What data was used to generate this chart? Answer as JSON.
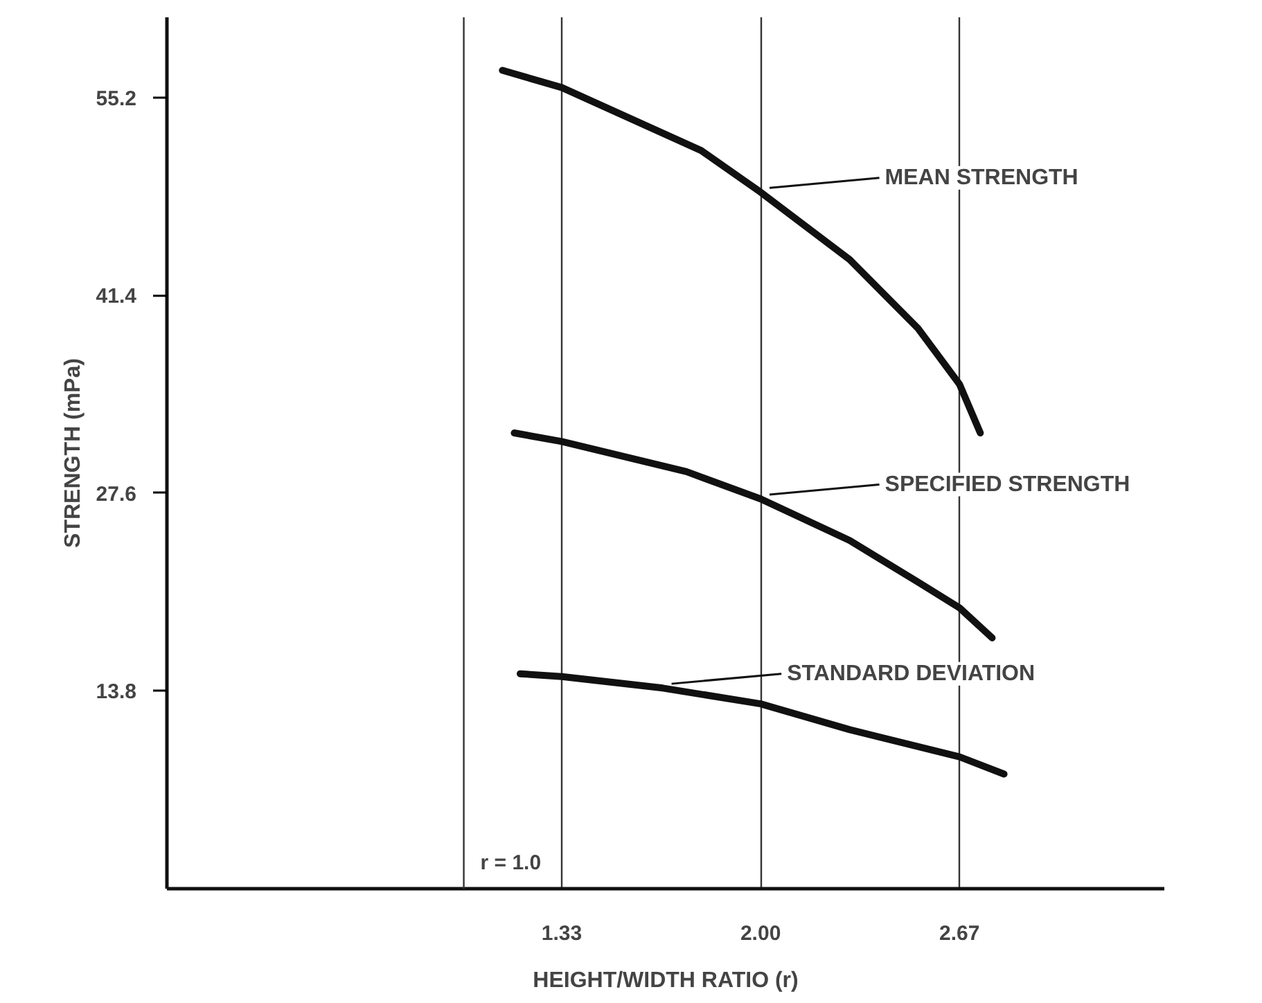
{
  "chart_data": {
    "type": "line",
    "xlabel": "HEIGHT/WIDTH RATIO (r)",
    "ylabel": "STRENGTH (mPa)",
    "xlim": [
      0,
      3.36
    ],
    "xticks": [
      {
        "value": 1.33,
        "label": "1.33"
      },
      {
        "value": 2.0,
        "label": "2.00"
      },
      {
        "value": 2.67,
        "label": "2.67"
      }
    ],
    "ylim": [
      0,
      60.8
    ],
    "legend": "right",
    "yticks": [
      13.8,
      27.6,
      41.4,
      55.2
    ],
    "grid": "x",
    "ref_lines": [
      {
        "axis": "x",
        "value": 1.0,
        "label": "r = 1.0"
      }
    ],
    "series": [
      {
        "name": "MEAN STRENGTH",
        "color": "#111111",
        "x": [
          1.13,
          1.33,
          1.8,
          2.0,
          2.3,
          2.53,
          2.67,
          2.74
        ],
        "values": [
          57.1,
          55.9,
          51.5,
          48.6,
          43.9,
          39.1,
          35.2,
          31.8
        ]
      },
      {
        "name": "SPECIFIED STRENGTH",
        "color": "#111111",
        "x": [
          1.17,
          1.33,
          1.75,
          2.0,
          2.3,
          2.53,
          2.67,
          2.78
        ],
        "values": [
          31.8,
          31.2,
          29.1,
          27.2,
          24.3,
          21.4,
          19.6,
          17.5
        ]
      },
      {
        "name": "STANDARD DEVIATION",
        "color": "#111111",
        "x": [
          1.19,
          1.33,
          1.67,
          2.0,
          2.3,
          2.67,
          2.82
        ],
        "values": [
          15.0,
          14.8,
          14.0,
          12.9,
          11.1,
          9.2,
          8.0
        ]
      }
    ]
  }
}
